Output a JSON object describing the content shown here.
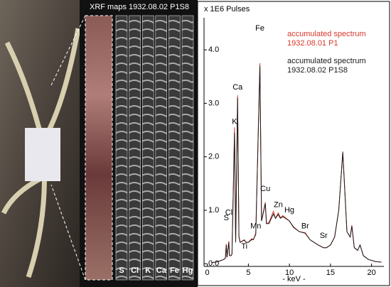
{
  "maps": {
    "title": "XRF maps 1932.08.02 P1S8",
    "labels": [
      "S",
      "Cl",
      "K",
      "Ca",
      "Fe",
      "Hg"
    ]
  },
  "chart_data": {
    "type": "line",
    "y_unit": "x 1E6 Pulses",
    "x_label": "- keV -",
    "x": [
      0.5,
      1,
      1.5,
      2.0,
      2.2,
      2.31,
      2.4,
      2.62,
      2.7,
      2.9,
      3.0,
      3.31,
      3.45,
      3.69,
      3.85,
      4.0,
      4.51,
      4.7,
      5.0,
      5.41,
      5.6,
      5.9,
      6.4,
      6.6,
      7.06,
      7.2,
      7.5,
      8.05,
      8.3,
      8.64,
      8.9,
      9.2,
      9.99,
      10.5,
      11.2,
      11.92,
      12.5,
      13.5,
      14.16,
      14.5,
      15.0,
      15.5,
      16.0,
      16.5,
      17.0,
      17.4,
      17.6,
      17.9,
      18.3,
      18.6,
      19.0,
      19.6,
      20.5,
      21.2
    ],
    "series": [
      {
        "name": "accumulated spectrum 1932.08.01 P1",
        "color": "#d9362b",
        "values": [
          0.02,
          0.03,
          0.05,
          0.08,
          0.1,
          0.37,
          0.12,
          0.42,
          0.15,
          0.15,
          0.18,
          2.55,
          0.4,
          3.15,
          0.5,
          0.4,
          0.45,
          0.4,
          0.4,
          0.47,
          0.45,
          0.57,
          3.75,
          0.8,
          1.15,
          0.75,
          0.77,
          0.98,
          0.85,
          0.95,
          0.86,
          0.9,
          0.8,
          0.69,
          0.6,
          0.58,
          0.45,
          0.35,
          0.3,
          0.3,
          0.35,
          0.5,
          1.0,
          2.1,
          0.6,
          0.5,
          0.72,
          0.3,
          0.25,
          0.35,
          0.15,
          0.08,
          0.04,
          0.03
        ]
      },
      {
        "name": "accumulated spectrum 1932.08.02 P1S8",
        "color": "#1a1a1a",
        "values": [
          0.02,
          0.03,
          0.05,
          0.08,
          0.1,
          0.35,
          0.12,
          0.4,
          0.15,
          0.15,
          0.18,
          2.45,
          0.4,
          3.1,
          0.5,
          0.4,
          0.44,
          0.4,
          0.4,
          0.45,
          0.45,
          0.55,
          3.7,
          0.8,
          1.12,
          0.75,
          0.75,
          0.93,
          0.85,
          0.92,
          0.85,
          0.88,
          0.8,
          0.68,
          0.6,
          0.57,
          0.45,
          0.35,
          0.3,
          0.3,
          0.35,
          0.5,
          1.0,
          2.08,
          0.6,
          0.5,
          0.7,
          0.3,
          0.25,
          0.35,
          0.15,
          0.08,
          0.04,
          0.03
        ]
      }
    ],
    "annotations": [
      {
        "text": "S",
        "x": 2.31,
        "y": 0.85
      },
      {
        "text": "Cl",
        "x": 2.62,
        "y": 0.95
      },
      {
        "text": "Ti",
        "x": 4.51,
        "y": 0.32
      },
      {
        "text": "K",
        "x": 3.31,
        "y": 2.65
      },
      {
        "text": "Ca",
        "x": 3.69,
        "y": 3.3
      },
      {
        "text": "Mn",
        "x": 5.9,
        "y": 0.7
      },
      {
        "text": "Fe",
        "x": 6.4,
        "y": 4.4
      },
      {
        "text": "Cu",
        "x": 7.06,
        "y": 1.4
      },
      {
        "text": "Zn",
        "x": 8.64,
        "y": 1.1
      },
      {
        "text": "Hg",
        "x": 9.99,
        "y": 1.0
      },
      {
        "text": "Br",
        "x": 11.92,
        "y": 0.7
      },
      {
        "text": "Sr",
        "x": 14.16,
        "y": 0.52
      }
    ],
    "xlim": [
      -0.4,
      21.5
    ],
    "ylim": [
      -0.05,
      4.6
    ],
    "xticks": [
      0,
      5,
      10,
      15,
      20
    ],
    "yticks": [
      {
        "value": 0,
        "label": "0.0"
      },
      {
        "value": 1,
        "label": "1.0"
      },
      {
        "value": 2,
        "label": "2.0"
      },
      {
        "value": 3,
        "label": "3.0"
      },
      {
        "value": 4,
        "label": "4.0"
      }
    ]
  }
}
